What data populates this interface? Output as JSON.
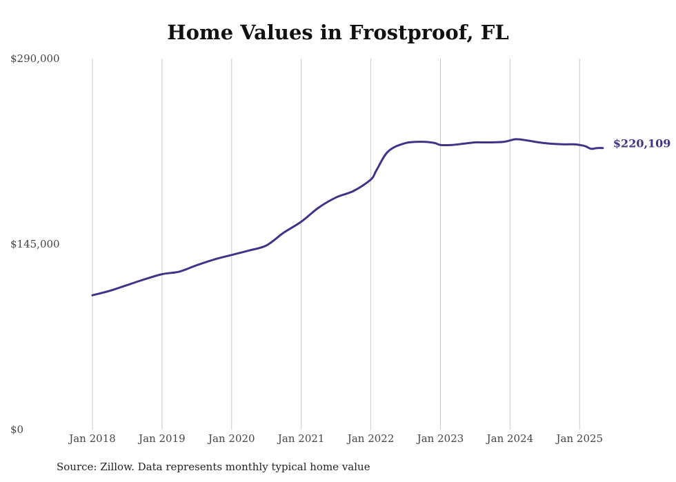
{
  "chart_data": {
    "type": "line",
    "title": "Home Values in Frostproof, FL",
    "xlabel": "",
    "ylabel": "",
    "ylim": [
      0,
      290000
    ],
    "y_ticks": [
      {
        "value": 0,
        "label": "$0"
      },
      {
        "value": 145000,
        "label": "$145,000"
      },
      {
        "value": 290000,
        "label": "$290,000"
      }
    ],
    "x_ticks": [
      "Jan 2018",
      "Jan 2019",
      "Jan 2020",
      "Jan 2021",
      "Jan 2022",
      "Jan 2023",
      "Jan 2024",
      "Jan 2025"
    ],
    "grid": {
      "vertical": true,
      "horizontal": false
    },
    "line_color": "#3d3488",
    "end_label": "$220,109",
    "series": [
      {
        "x": [
          "2018-01",
          "2018-04",
          "2018-07",
          "2018-10",
          "2019-01",
          "2019-04",
          "2019-07",
          "2019-10",
          "2020-01",
          "2020-04",
          "2020-07",
          "2020-10",
          "2021-01",
          "2021-04",
          "2021-07",
          "2021-10",
          "2022-01",
          "2022-02",
          "2022-04",
          "2022-07",
          "2022-10",
          "2022-12",
          "2023-01",
          "2023-03",
          "2023-05",
          "2023-07",
          "2023-09",
          "2023-12",
          "2024-02",
          "2024-04",
          "2024-06",
          "2024-08",
          "2024-10",
          "2024-12",
          "2025-01",
          "2025-02",
          "2025-03",
          "2025-04",
          "2025-05"
        ],
        "values": [
          105000,
          108500,
          113000,
          117500,
          121500,
          123500,
          128500,
          133000,
          136500,
          140000,
          144000,
          154000,
          162500,
          173500,
          181500,
          186500,
          195500,
          203000,
          217500,
          224000,
          225000,
          224000,
          222500,
          222500,
          223500,
          224500,
          224500,
          225000,
          227000,
          226000,
          224500,
          223500,
          223000,
          223000,
          222500,
          221500,
          219500,
          220109,
          220109
        ]
      }
    ],
    "source": "Source: Zillow. Data represents monthly typical home value"
  }
}
